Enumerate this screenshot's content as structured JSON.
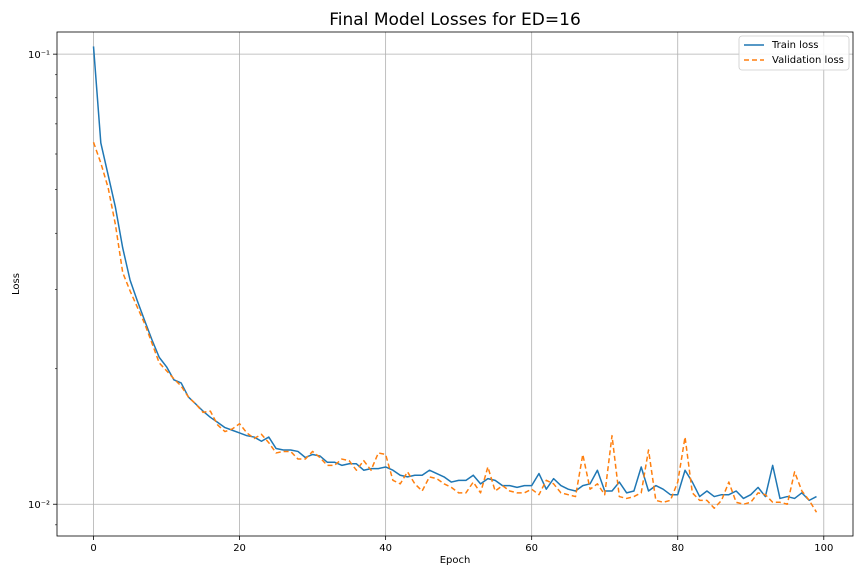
{
  "chart_data": {
    "type": "line",
    "title": "Final Model Losses for ED=16",
    "xlabel": "Epoch",
    "ylabel": "Loss",
    "yscale": "log",
    "xlim": [
      -5,
      104
    ],
    "ylim": [
      0.0085,
      0.112
    ],
    "xticks": [
      0,
      20,
      40,
      60,
      80,
      100
    ],
    "xtick_labels": [
      "0",
      "20",
      "40",
      "60",
      "80",
      "100"
    ],
    "yticks": [
      0.1,
      0.01
    ],
    "ytick_labels": [
      "10⁻¹",
      "10⁻²"
    ],
    "grid": true,
    "legend_position": "top-right",
    "x": [
      0,
      1,
      2,
      3,
      4,
      5,
      6,
      7,
      8,
      9,
      10,
      11,
      12,
      13,
      14,
      15,
      16,
      17,
      18,
      19,
      20,
      21,
      22,
      23,
      24,
      25,
      26,
      27,
      28,
      29,
      30,
      31,
      32,
      33,
      34,
      35,
      36,
      37,
      38,
      39,
      40,
      41,
      42,
      43,
      44,
      45,
      46,
      47,
      48,
      49,
      50,
      51,
      52,
      53,
      54,
      55,
      56,
      57,
      58,
      59,
      60,
      61,
      62,
      63,
      64,
      65,
      66,
      67,
      68,
      69,
      70,
      71,
      72,
      73,
      74,
      75,
      76,
      77,
      78,
      79,
      80,
      81,
      82,
      83,
      84,
      85,
      86,
      87,
      88,
      89,
      90,
      91,
      92,
      93,
      94,
      95,
      96,
      97,
      98,
      99
    ],
    "series": [
      {
        "name": "Train loss",
        "color": "#1f77b4",
        "style": "solid",
        "values": [
          0.104,
          0.0635,
          0.0539,
          0.0457,
          0.0371,
          0.0315,
          0.0283,
          0.0256,
          0.0232,
          0.0212,
          0.0202,
          0.0189,
          0.0186,
          0.0173,
          0.0167,
          0.0161,
          0.0156,
          0.0152,
          0.0148,
          0.0146,
          0.0144,
          0.0142,
          0.0141,
          0.0138,
          0.0141,
          0.0133,
          0.0132,
          0.0132,
          0.0131,
          0.0127,
          0.0129,
          0.0128,
          0.0124,
          0.0124,
          0.0122,
          0.0123,
          0.0123,
          0.0119,
          0.012,
          0.012,
          0.0121,
          0.0119,
          0.0116,
          0.0115,
          0.0116,
          0.0116,
          0.0119,
          0.0117,
          0.0115,
          0.0112,
          0.0113,
          0.0113,
          0.0116,
          0.0111,
          0.0114,
          0.0113,
          0.011,
          0.011,
          0.0109,
          0.011,
          0.011,
          0.0117,
          0.0108,
          0.0114,
          0.011,
          0.0108,
          0.0107,
          0.011,
          0.0111,
          0.0119,
          0.0107,
          0.0107,
          0.0112,
          0.0106,
          0.0107,
          0.0121,
          0.0107,
          0.011,
          0.0108,
          0.0105,
          0.0105,
          0.0119,
          0.0112,
          0.0104,
          0.0107,
          0.0104,
          0.0105,
          0.0105,
          0.0107,
          0.0103,
          0.0105,
          0.0109,
          0.0104,
          0.0122,
          0.0103,
          0.0104,
          0.0103,
          0.0106,
          0.0102,
          0.0104
        ]
      },
      {
        "name": "Validation loss",
        "color": "#ff7f0e",
        "style": "dashed",
        "values": [
          0.0637,
          0.0573,
          0.0505,
          0.0418,
          0.0327,
          0.0298,
          0.0274,
          0.0252,
          0.0228,
          0.0206,
          0.0198,
          0.019,
          0.0183,
          0.0173,
          0.0167,
          0.016,
          0.0161,
          0.015,
          0.0145,
          0.0147,
          0.0151,
          0.0144,
          0.014,
          0.0143,
          0.0137,
          0.013,
          0.0131,
          0.0131,
          0.0126,
          0.0126,
          0.0131,
          0.0127,
          0.0122,
          0.0122,
          0.0126,
          0.0125,
          0.0119,
          0.0125,
          0.0119,
          0.013,
          0.0129,
          0.0113,
          0.0111,
          0.0118,
          0.0111,
          0.0107,
          0.0115,
          0.0114,
          0.0111,
          0.0109,
          0.0106,
          0.0106,
          0.0112,
          0.0106,
          0.0121,
          0.0107,
          0.011,
          0.0107,
          0.0106,
          0.0106,
          0.0108,
          0.0105,
          0.0113,
          0.0111,
          0.0106,
          0.0105,
          0.0104,
          0.0129,
          0.0108,
          0.0111,
          0.0105,
          0.0142,
          0.0104,
          0.0103,
          0.0104,
          0.0106,
          0.0132,
          0.0102,
          0.0101,
          0.0102,
          0.0112,
          0.0141,
          0.0106,
          0.0102,
          0.0102,
          0.0098,
          0.0102,
          0.0112,
          0.0101,
          0.01,
          0.0101,
          0.0106,
          0.0105,
          0.0101,
          0.0101,
          0.01,
          0.0118,
          0.0107,
          0.0102,
          0.0096
        ]
      }
    ]
  }
}
